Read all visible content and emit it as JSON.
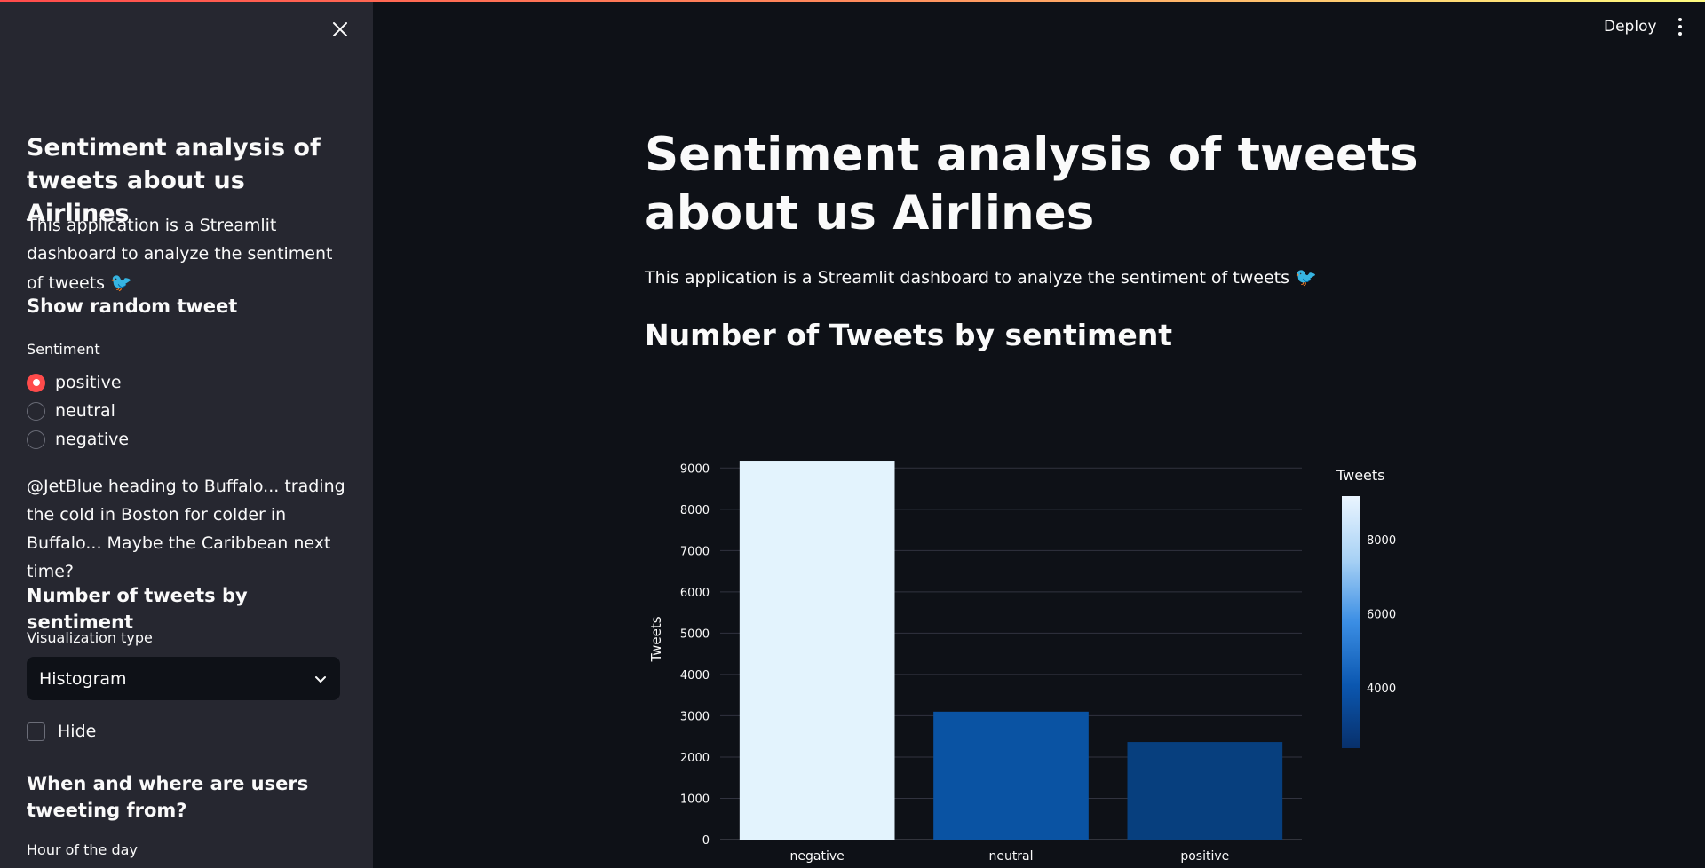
{
  "sidebar": {
    "title": "Sentiment analysis of tweets about us Airlines",
    "description": "This application is a Streamlit dashboard to analyze the sentiment of tweets",
    "random_tweet_header": "Show random tweet",
    "sentiment_label": "Sentiment",
    "sentiment_options": [
      "positive",
      "neutral",
      "negative"
    ],
    "selected_sentiment": "positive",
    "random_tweet": "@JetBlue heading to Buffalo... trading the cold in Boston for colder in Buffalo... Maybe the Caribbean next time?",
    "count_header": "Number of tweets by sentiment",
    "viz_label": "Visualization type",
    "viz_value": "Histogram",
    "hide_label": "Hide",
    "where_header": "When and where are users tweeting from?",
    "hour_label": "Hour of the day"
  },
  "header": {
    "deploy": "Deploy"
  },
  "main": {
    "title": "Sentiment analysis of tweets about us Airlines",
    "description": "This application is a Streamlit dashboard to analyze the sentiment of tweets",
    "section_title": "Number of Tweets by sentiment"
  },
  "colors": {
    "accent": "#ff4b4b",
    "bird": "#d1193e",
    "sidebar_bg": "#262730",
    "main_bg": "#0e1117"
  },
  "chart_data": {
    "type": "bar",
    "categories": [
      "negative",
      "neutral",
      "positive"
    ],
    "values": [
      9178,
      3099,
      2363
    ],
    "ylabel": "Tweets",
    "xlabel": "",
    "ylim": [
      0,
      9200
    ],
    "yticks": [
      0,
      1000,
      2000,
      3000,
      4000,
      5000,
      6000,
      7000,
      8000,
      9000
    ],
    "grid": true,
    "colorbar": {
      "title": "Tweets",
      "ticks": [
        4000,
        6000,
        8000
      ],
      "range": [
        2363,
        9178
      ],
      "colors": [
        "#08306b",
        "#0b57b0",
        "#3b8ee4",
        "#a9d2f5",
        "#eaf5ff"
      ]
    },
    "bar_colors": [
      "#e3f3fd",
      "#0a53a3",
      "#073f7e"
    ]
  }
}
